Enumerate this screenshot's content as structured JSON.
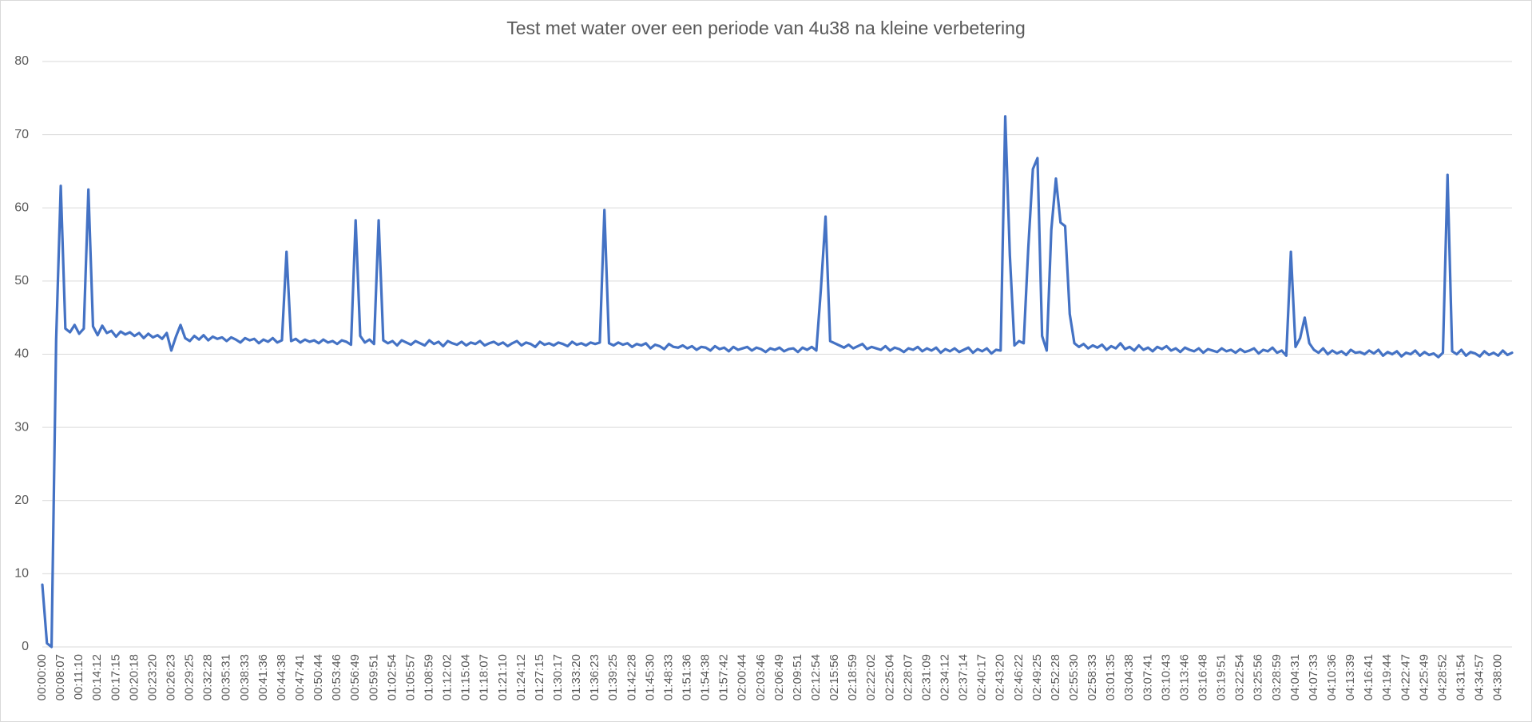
{
  "chart_data": {
    "type": "line",
    "title": "Test met water over een periode van 4u38 na kleine verbetering",
    "categories": [
      "00:00:00",
      null,
      null,
      null,
      "00:08:07",
      null,
      null,
      null,
      "00:11:10",
      null,
      null,
      null,
      "00:14:12",
      null,
      null,
      null,
      "00:17:15",
      null,
      null,
      null,
      "00:20:18",
      null,
      null,
      null,
      "00:23:20",
      null,
      null,
      null,
      "00:26:23",
      null,
      null,
      null,
      "00:29:25",
      null,
      null,
      null,
      "00:32:28",
      null,
      null,
      null,
      "00:35:31",
      null,
      null,
      null,
      "00:38:33",
      null,
      null,
      null,
      "00:41:36",
      null,
      null,
      null,
      "00:44:38",
      null,
      null,
      null,
      "00:47:41",
      null,
      null,
      null,
      "00:50:44",
      null,
      null,
      null,
      "00:53:46",
      null,
      null,
      null,
      "00:56:49",
      null,
      null,
      null,
      "00:59:51",
      null,
      null,
      null,
      "01:02:54",
      null,
      null,
      null,
      "01:05:57",
      null,
      null,
      null,
      "01:08:59",
      null,
      null,
      null,
      "01:12:02",
      null,
      null,
      null,
      "01:15:04",
      null,
      null,
      null,
      "01:18:07",
      null,
      null,
      null,
      "01:21:10",
      null,
      null,
      null,
      "01:24:12",
      null,
      null,
      null,
      "01:27:15",
      null,
      null,
      null,
      "01:30:17",
      null,
      null,
      null,
      "01:33:20",
      null,
      null,
      null,
      "01:36:23",
      null,
      null,
      null,
      "01:39:25",
      null,
      null,
      null,
      "01:42:28",
      null,
      null,
      null,
      "01:45:30",
      null,
      null,
      null,
      "01:48:33",
      null,
      null,
      null,
      "01:51:36",
      null,
      null,
      null,
      "01:54:38",
      null,
      null,
      null,
      "01:57:42",
      null,
      null,
      null,
      "02:00:44",
      null,
      null,
      null,
      "02:03:46",
      null,
      null,
      null,
      "02:06:49",
      null,
      null,
      null,
      "02:09:51",
      null,
      null,
      null,
      "02:12:54",
      null,
      null,
      null,
      "02:15:56",
      null,
      null,
      null,
      "02:18:59",
      null,
      null,
      null,
      "02:22:02",
      null,
      null,
      null,
      "02:25:04",
      null,
      null,
      null,
      "02:28:07",
      null,
      null,
      null,
      "02:31:09",
      null,
      null,
      null,
      "02:34:12",
      null,
      null,
      null,
      "02:37:14",
      null,
      null,
      null,
      "02:40:17",
      null,
      null,
      null,
      "02:43:20",
      null,
      null,
      null,
      "02:46:22",
      null,
      null,
      null,
      "02:49:25",
      null,
      null,
      null,
      "02:52:28",
      null,
      null,
      null,
      "02:55:30",
      null,
      null,
      null,
      "02:58:33",
      null,
      null,
      null,
      "03:01:35",
      null,
      null,
      null,
      "03:04:38",
      null,
      null,
      null,
      "03:07:41",
      null,
      null,
      null,
      "03:10:43",
      null,
      null,
      null,
      "03:13:46",
      null,
      null,
      null,
      "03:16:48",
      null,
      null,
      null,
      "03:19:51",
      null,
      null,
      null,
      "03:22:54",
      null,
      null,
      null,
      "03:25:56",
      null,
      null,
      null,
      "03:28:59",
      null,
      null,
      null,
      "04:04:31",
      null,
      null,
      null,
      "04:07:33",
      null,
      null,
      null,
      "04:10:36",
      null,
      null,
      null,
      "04:13:39",
      null,
      null,
      null,
      "04:16:41",
      null,
      null,
      null,
      "04:19:44",
      null,
      null,
      null,
      "04:22:47",
      null,
      null,
      null,
      "04:25:49",
      null,
      null,
      null,
      "04:28:52",
      null,
      null,
      null,
      "04:31:54",
      null,
      null,
      null,
      "04:34:57",
      null,
      null,
      null,
      "04:38:00",
      null,
      null,
      null
    ],
    "values": [
      8.5,
      0.5,
      0,
      42,
      63,
      43.5,
      43,
      44,
      42.8,
      43.5,
      62.5,
      43.8,
      42.6,
      43.9,
      42.9,
      43.2,
      42.4,
      43.1,
      42.7,
      43.0,
      42.5,
      42.9,
      42.2,
      42.8,
      42.3,
      42.6,
      42.1,
      42.9,
      40.5,
      42.4,
      44,
      42.2,
      41.8,
      42.5,
      42.0,
      42.6,
      41.9,
      42.4,
      42.1,
      42.3,
      41.8,
      42.3,
      42.0,
      41.6,
      42.2,
      41.9,
      42.1,
      41.5,
      42.0,
      41.7,
      42.2,
      41.6,
      41.9,
      54,
      41.8,
      42.1,
      41.6,
      42.0,
      41.7,
      41.9,
      41.5,
      42.0,
      41.6,
      41.8,
      41.4,
      41.9,
      41.7,
      41.3,
      58.3,
      42.5,
      41.6,
      42.0,
      41.4,
      58.3,
      41.9,
      41.5,
      41.8,
      41.2,
      41.9,
      41.6,
      41.3,
      41.8,
      41.5,
      41.2,
      41.9,
      41.4,
      41.7,
      41.1,
      41.8,
      41.5,
      41.3,
      41.7,
      41.2,
      41.6,
      41.4,
      41.8,
      41.2,
      41.5,
      41.7,
      41.3,
      41.6,
      41.1,
      41.5,
      41.8,
      41.2,
      41.6,
      41.4,
      41.0,
      41.7,
      41.3,
      41.5,
      41.2,
      41.6,
      41.4,
      41.1,
      41.7,
      41.3,
      41.5,
      41.2,
      41.6,
      41.4,
      41.6,
      59.7,
      41.5,
      41.2,
      41.6,
      41.3,
      41.5,
      41.0,
      41.4,
      41.2,
      41.5,
      40.8,
      41.3,
      41.1,
      40.7,
      41.4,
      41.0,
      40.9,
      41.2,
      40.8,
      41.1,
      40.6,
      41.0,
      40.9,
      40.5,
      41.1,
      40.7,
      40.9,
      40.4,
      41.0,
      40.6,
      40.8,
      41.0,
      40.5,
      40.9,
      40.7,
      40.3,
      40.8,
      40.6,
      40.9,
      40.4,
      40.7,
      40.8,
      40.3,
      40.9,
      40.6,
      41.0,
      40.5,
      49,
      58.8,
      41.8,
      41.5,
      41.2,
      40.9,
      41.3,
      40.8,
      41.1,
      41.4,
      40.7,
      41.0,
      40.8,
      40.6,
      41.1,
      40.5,
      40.9,
      40.7,
      40.3,
      40.8,
      40.6,
      41.0,
      40.4,
      40.8,
      40.5,
      40.9,
      40.2,
      40.7,
      40.4,
      40.8,
      40.3,
      40.6,
      40.9,
      40.2,
      40.7,
      40.4,
      40.8,
      40.1,
      40.6,
      40.5,
      72.5,
      53.5,
      41.2,
      41.8,
      41.5,
      54.5,
      65.3,
      66.8,
      42.5,
      40.5,
      57,
      64,
      58,
      57.5,
      45.5,
      41.5,
      41.0,
      41.4,
      40.8,
      41.2,
      40.9,
      41.3,
      40.6,
      41.1,
      40.8,
      41.5,
      40.7,
      41.0,
      40.5,
      41.2,
      40.6,
      40.9,
      40.4,
      41.0,
      40.7,
      41.1,
      40.5,
      40.8,
      40.3,
      40.9,
      40.6,
      40.4,
      40.8,
      40.2,
      40.7,
      40.5,
      40.3,
      40.8,
      40.4,
      40.6,
      40.2,
      40.7,
      40.3,
      40.5,
      40.8,
      40.1,
      40.6,
      40.4,
      40.9,
      40.2,
      40.5,
      39.8,
      54,
      41.0,
      42.2,
      45,
      41.5,
      40.6,
      40.2,
      40.8,
      40.0,
      40.5,
      40.1,
      40.4,
      39.9,
      40.6,
      40.2,
      40.3,
      40.0,
      40.5,
      40.1,
      40.6,
      39.8,
      40.3,
      40.0,
      40.4,
      39.7,
      40.2,
      40.0,
      40.5,
      39.8,
      40.3,
      39.9,
      40.1,
      39.6,
      40.2,
      64.5,
      40.4,
      40.0,
      40.6,
      39.8,
      40.3,
      40.1,
      39.7,
      40.4,
      39.9,
      40.2,
      39.8,
      40.5,
      39.9,
      40.2
    ],
    "color": "#4472c4",
    "ylim": [
      0,
      80
    ],
    "yticks": [
      0,
      10,
      20,
      30,
      40,
      50,
      60,
      70,
      80
    ],
    "grid": true
  }
}
